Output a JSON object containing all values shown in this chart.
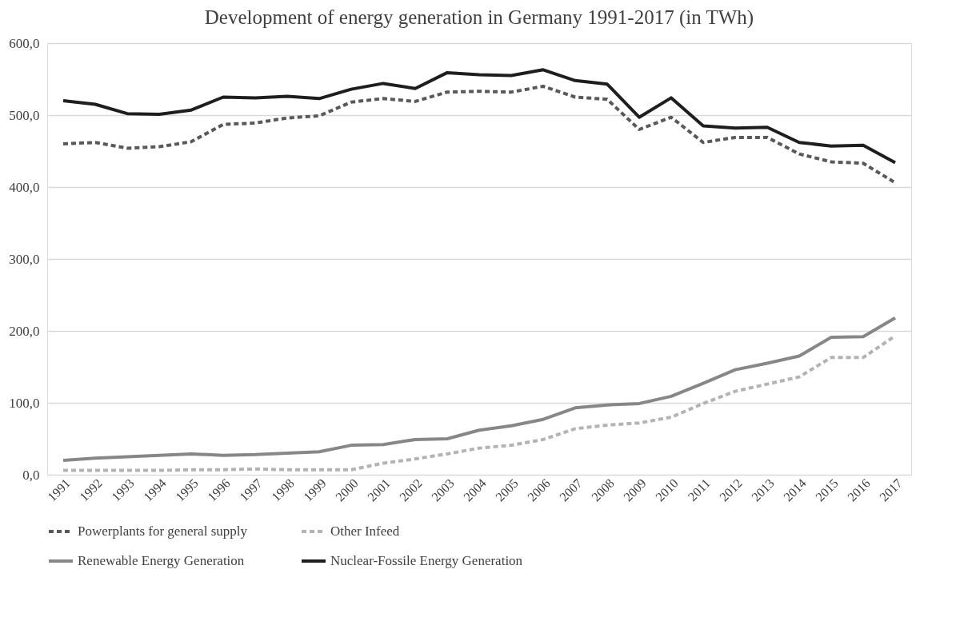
{
  "chart_data": {
    "type": "line",
    "title": "Development of energy generation in Germany 1991-2017 (in TWh)",
    "categories": [
      "1991",
      "1992",
      "1993",
      "1994",
      "1995",
      "1996",
      "1997",
      "1998",
      "1999",
      "2000",
      "2001",
      "2002",
      "2003",
      "2004",
      "2005",
      "2006",
      "2007",
      "2008",
      "2009",
      "2010",
      "2011",
      "2012",
      "2013",
      "2014",
      "2015",
      "2016",
      "2017"
    ],
    "series": [
      {
        "name": "Powerplants for general supply",
        "color": "#595959",
        "line_style": "dashed",
        "values": [
          460,
          462,
          454,
          456,
          463,
          487,
          489,
          496,
          499,
          518,
          523,
          519,
          532,
          533,
          532,
          540,
          525,
          522,
          480,
          497,
          462,
          469,
          469,
          446,
          435,
          433,
          406
        ]
      },
      {
        "name": "Other Infeed",
        "color": "#b3b3b3",
        "line_style": "dashed",
        "values": [
          6,
          6,
          6,
          6,
          7,
          7,
          8,
          7,
          7,
          7,
          16,
          22,
          29,
          37,
          41,
          49,
          64,
          69,
          72,
          80,
          99,
          116,
          126,
          136,
          163,
          163,
          193
        ]
      },
      {
        "name": "Renewable Energy Generation",
        "color": "#878787",
        "line_style": "solid",
        "values": [
          20,
          23,
          25,
          27,
          29,
          27,
          28,
          30,
          32,
          41,
          42,
          49,
          50,
          62,
          68,
          77,
          93,
          97,
          99,
          109,
          127,
          146,
          155,
          165,
          191,
          192,
          218
        ]
      },
      {
        "name": "Nuclear-Fossile Energy Generation",
        "color": "#1e1e1e",
        "line_style": "solid",
        "values": [
          520,
          515,
          502,
          501,
          507,
          525,
          524,
          526,
          523,
          536,
          544,
          537,
          559,
          556,
          555,
          563,
          548,
          543,
          497,
          524,
          485,
          482,
          483,
          462,
          457,
          458,
          434
        ]
      }
    ],
    "ylim": [
      0,
      600
    ],
    "yticks": [
      {
        "value": 0,
        "label": "0,0"
      },
      {
        "value": 100,
        "label": "100,0"
      },
      {
        "value": 200,
        "label": "200,0"
      },
      {
        "value": 300,
        "label": "300,0"
      },
      {
        "value": 400,
        "label": "400,0"
      },
      {
        "value": 500,
        "label": "500,0"
      },
      {
        "value": 600,
        "label": "600,0"
      }
    ],
    "grid": "y",
    "legend": "bottom",
    "marker": "none"
  }
}
